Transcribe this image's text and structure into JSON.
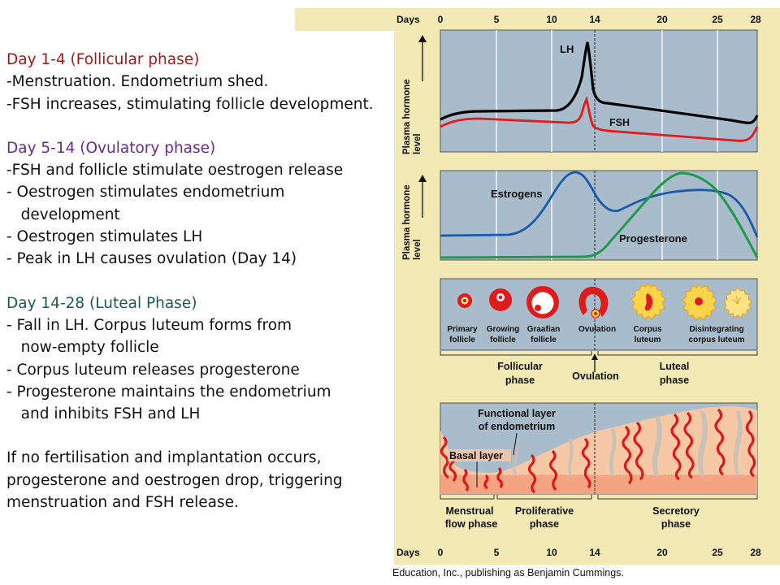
{
  "text": {
    "follicular_heading": "Day 1-4 (Follicular phase)",
    "follicular_lines": [
      "-Menstruation. Endometrium shed.",
      "-FSH increases, stimulating follicle development."
    ],
    "ovulatory_heading": "Day 5-14 (Ovulatory phase)",
    "ovulatory_lines": [
      "-FSH and follicle stimulate oestrogen release",
      "- Oestrogen stimulates endometrium",
      "   development",
      "- Oestrogen stimulates LH",
      "- Peak in LH causes ovulation (Day 14)"
    ],
    "luteal_heading": "Day 14-28 (Luteal Phase)",
    "luteal_lines": [
      "- Fall in LH. Corpus luteum forms from",
      "   now-empty follicle",
      "- Corpus luteum releases progesterone",
      "- Progesterone maintains the endometrium",
      "   and inhibits FSH and LH"
    ],
    "conclusion_lines": [
      "If no fertilisation and implantation occurs,",
      "progesterone and oestrogen drop, triggering",
      "menstruation and FSH release."
    ]
  },
  "figure": {
    "days_label": "Days",
    "day_ticks": [
      "0",
      "5",
      "10",
      "14",
      "20",
      "25",
      "28"
    ],
    "y_axis_label_line1": "Plasma hormone",
    "y_axis_label_line2": "level",
    "lh_label": "LH",
    "fsh_label": "FSH",
    "estrogens_label": "Estrogens",
    "progesterone_label": "Progesterone",
    "follicle_stages": [
      {
        "line1": "Primary",
        "line2": "follicle"
      },
      {
        "line1": "Growing",
        "line2": "follicle"
      },
      {
        "line1": "Graafian",
        "line2": "follicle"
      },
      {
        "line1": "Ovulation",
        "line2": ""
      },
      {
        "line1": "Corpus",
        "line2": "luteum"
      },
      {
        "line1": "Disintegrating",
        "line2": "corpus luteum"
      }
    ],
    "ovarian_phases": {
      "follicular_line1": "Follicular",
      "follicular_line2": "phase",
      "ovulation": "Ovulation",
      "luteal_line1": "Luteal",
      "luteal_line2": "phase"
    },
    "endometrium_labels": {
      "functional_line1": "Functional layer",
      "functional_line2": "of endometrium",
      "basal": "Basal layer"
    },
    "uterine_phases": {
      "menstrual_line1": "Menstrual",
      "menstrual_line2": "flow phase",
      "proliferative_line1": "Proliferative",
      "proliferative_line2": "phase",
      "secretory_line1": "Secretory",
      "secretory_line2": "phase"
    },
    "credit": "Education, Inc., publishing as Benjamin Cummings."
  },
  "colors": {
    "panel_bg": "#a9bccb",
    "frame_bg": "#f2e9b4",
    "lh": "#000000",
    "fsh": "#e01b1b",
    "estrogens": "#1c5aa8",
    "progesterone": "#1e9a4a",
    "follicle_red": "#e01b1b",
    "corpus_yellow": "#fbd44a",
    "endometrium": "#f7c8a6"
  }
}
